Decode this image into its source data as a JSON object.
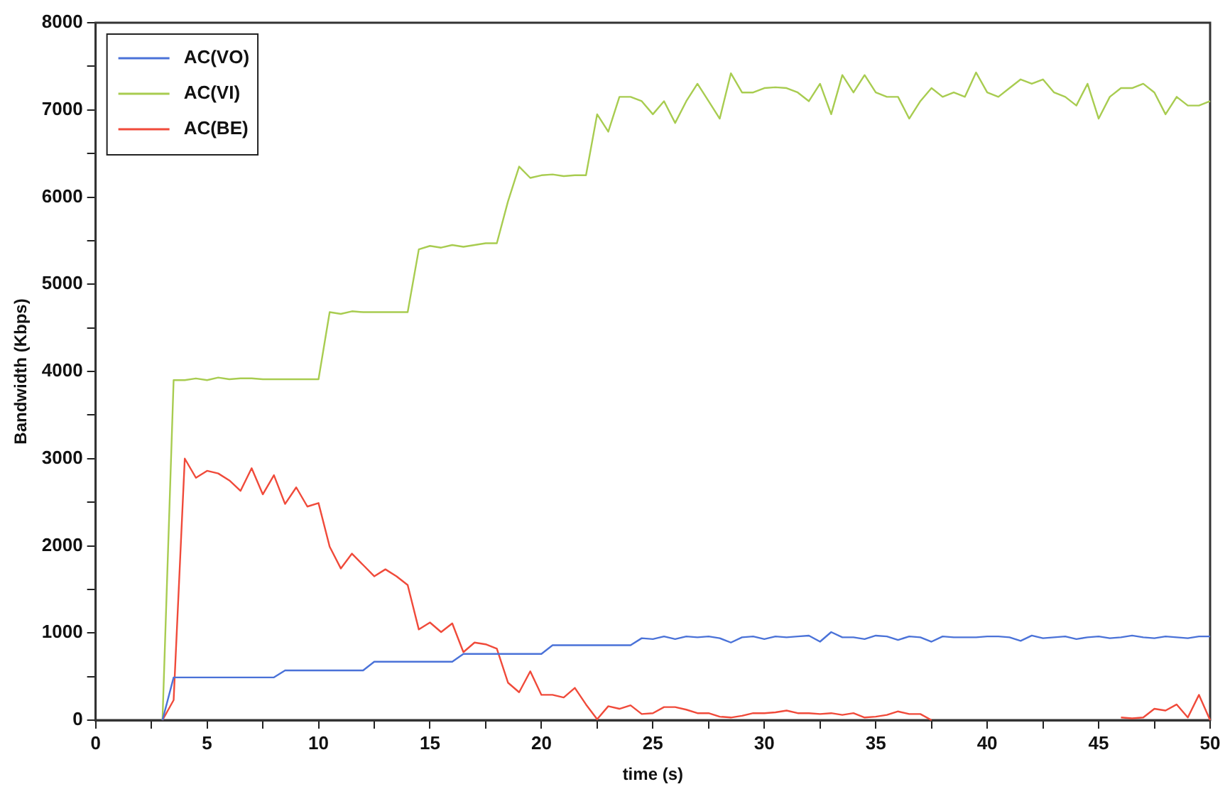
{
  "chart_data": {
    "type": "line",
    "xlabel": "time (s)",
    "ylabel": "Bandwidth (Kbps)",
    "x": [
      3,
      3.5,
      4,
      4.5,
      5,
      5.5,
      6,
      6.5,
      7,
      7.5,
      8,
      8.5,
      9,
      9.5,
      10,
      10.5,
      11,
      11.5,
      12,
      12.5,
      13,
      13.5,
      14,
      14.5,
      15,
      15.5,
      16,
      16.5,
      17,
      17.5,
      18,
      18.5,
      19,
      19.5,
      20,
      20.5,
      21,
      21.5,
      22,
      22.5,
      23,
      23.5,
      24,
      24.5,
      25,
      25.5,
      26,
      26.5,
      27,
      27.5,
      28,
      28.5,
      29,
      29.5,
      30,
      30.5,
      31,
      31.5,
      32,
      32.5,
      33,
      33.5,
      34,
      34.5,
      35,
      35.5,
      36,
      36.5,
      37,
      37.5,
      38,
      38.5,
      39,
      39.5,
      40,
      40.5,
      41,
      41.5,
      42,
      42.5,
      43,
      43.5,
      44,
      44.5,
      45,
      45.5,
      46,
      46.5,
      47,
      47.5,
      48,
      48.5,
      49,
      49.5,
      50
    ],
    "series": [
      {
        "name": "AC(VO)",
        "color": "#4a72d8",
        "values": [
          0,
          490,
          490,
          490,
          490,
          490,
          490,
          490,
          490,
          490,
          490,
          570,
          570,
          570,
          570,
          570,
          570,
          570,
          570,
          670,
          670,
          670,
          670,
          670,
          670,
          670,
          670,
          760,
          760,
          760,
          760,
          760,
          760,
          760,
          760,
          860,
          860,
          860,
          860,
          860,
          860,
          860,
          860,
          940,
          930,
          960,
          930,
          960,
          950,
          960,
          940,
          890,
          950,
          960,
          930,
          960,
          950,
          960,
          970,
          900,
          1010,
          950,
          950,
          930,
          970,
          960,
          920,
          960,
          950,
          900,
          960,
          950,
          950,
          950,
          960,
          960,
          950,
          910,
          970,
          940,
          950,
          960,
          930,
          950,
          960,
          940,
          950,
          970,
          950,
          940,
          960,
          950,
          940,
          960,
          960
        ]
      },
      {
        "name": "AC(VI)",
        "color": "#a8cc50",
        "values": [
          0,
          3900,
          3900,
          3920,
          3900,
          3930,
          3910,
          3920,
          3920,
          3910,
          3910,
          3910,
          3910,
          3910,
          3910,
          4680,
          4660,
          4690,
          4680,
          4680,
          4680,
          4680,
          4680,
          5400,
          5440,
          5420,
          5450,
          5430,
          5450,
          5470,
          5470,
          5950,
          6350,
          6220,
          6250,
          6260,
          6240,
          6250,
          6250,
          6950,
          6750,
          7150,
          7150,
          7100,
          6950,
          7100,
          6850,
          7100,
          7300,
          7100,
          6900,
          7420,
          7200,
          7200,
          7250,
          7260,
          7250,
          7200,
          7100,
          7300,
          6950,
          7400,
          7200,
          7400,
          7200,
          7150,
          7150,
          6900,
          7100,
          7250,
          7150,
          7200,
          7150,
          7430,
          7200,
          7150,
          7250,
          7350,
          7300,
          7350,
          7200,
          7150,
          7050,
          7300,
          6900,
          7150,
          7250,
          7250,
          7300,
          7200,
          6950,
          7150,
          7050,
          7050,
          7100
        ]
      },
      {
        "name": "AC(BE)",
        "color": "#f04a3a",
        "values": [
          0,
          230,
          3000,
          2780,
          2860,
          2830,
          2750,
          2630,
          2890,
          2590,
          2810,
          2480,
          2670,
          2450,
          2490,
          1990,
          1740,
          1910,
          1780,
          1650,
          1730,
          1650,
          1550,
          1040,
          1120,
          1010,
          1110,
          780,
          890,
          870,
          820,
          430,
          320,
          560,
          290,
          290,
          260,
          370,
          180,
          10,
          160,
          130,
          170,
          70,
          80,
          150,
          150,
          120,
          80,
          80,
          40,
          30,
          50,
          80,
          80,
          90,
          110,
          80,
          80,
          70,
          80,
          60,
          80,
          30,
          40,
          60,
          100,
          70,
          70,
          0,
          null,
          null,
          null,
          null,
          null,
          null,
          null,
          null,
          null,
          null,
          null,
          null,
          null,
          null,
          null,
          null,
          30,
          20,
          30,
          130,
          110,
          180,
          30,
          290,
          0
        ]
      }
    ],
    "xlim": [
      0,
      50
    ],
    "xticks": [
      0,
      {
        "value": 2.5,
        "label": null
      },
      5,
      {
        "value": 7.5,
        "label": null
      },
      10,
      {
        "value": 12.5,
        "label": null
      },
      15,
      {
        "value": 17.5,
        "label": null
      },
      20,
      {
        "value": 22.5,
        "label": null
      },
      25,
      {
        "value": 27.5,
        "label": null
      },
      30,
      {
        "value": 32.5,
        "label": null
      },
      35,
      {
        "value": 37.5,
        "label": null
      },
      40,
      {
        "value": 42.5,
        "label": null
      },
      45,
      {
        "value": 47.5,
        "label": null
      },
      50
    ],
    "ylim": [
      0,
      8000
    ],
    "yticks": [
      0,
      {
        "value": 500,
        "label": null
      },
      1000,
      {
        "value": 1500,
        "label": null
      },
      2000,
      {
        "value": 2500,
        "label": null
      },
      3000,
      {
        "value": 3500,
        "label": null
      },
      4000,
      {
        "value": 4500,
        "label": null
      },
      5000,
      {
        "value": 5500,
        "label": null
      },
      6000,
      {
        "value": 6500,
        "label": null
      },
      7000,
      {
        "value": 7500,
        "label": null
      },
      8000
    ],
    "grid": false,
    "legend": "top left",
    "marker": "none",
    "line_style": "solid"
  }
}
